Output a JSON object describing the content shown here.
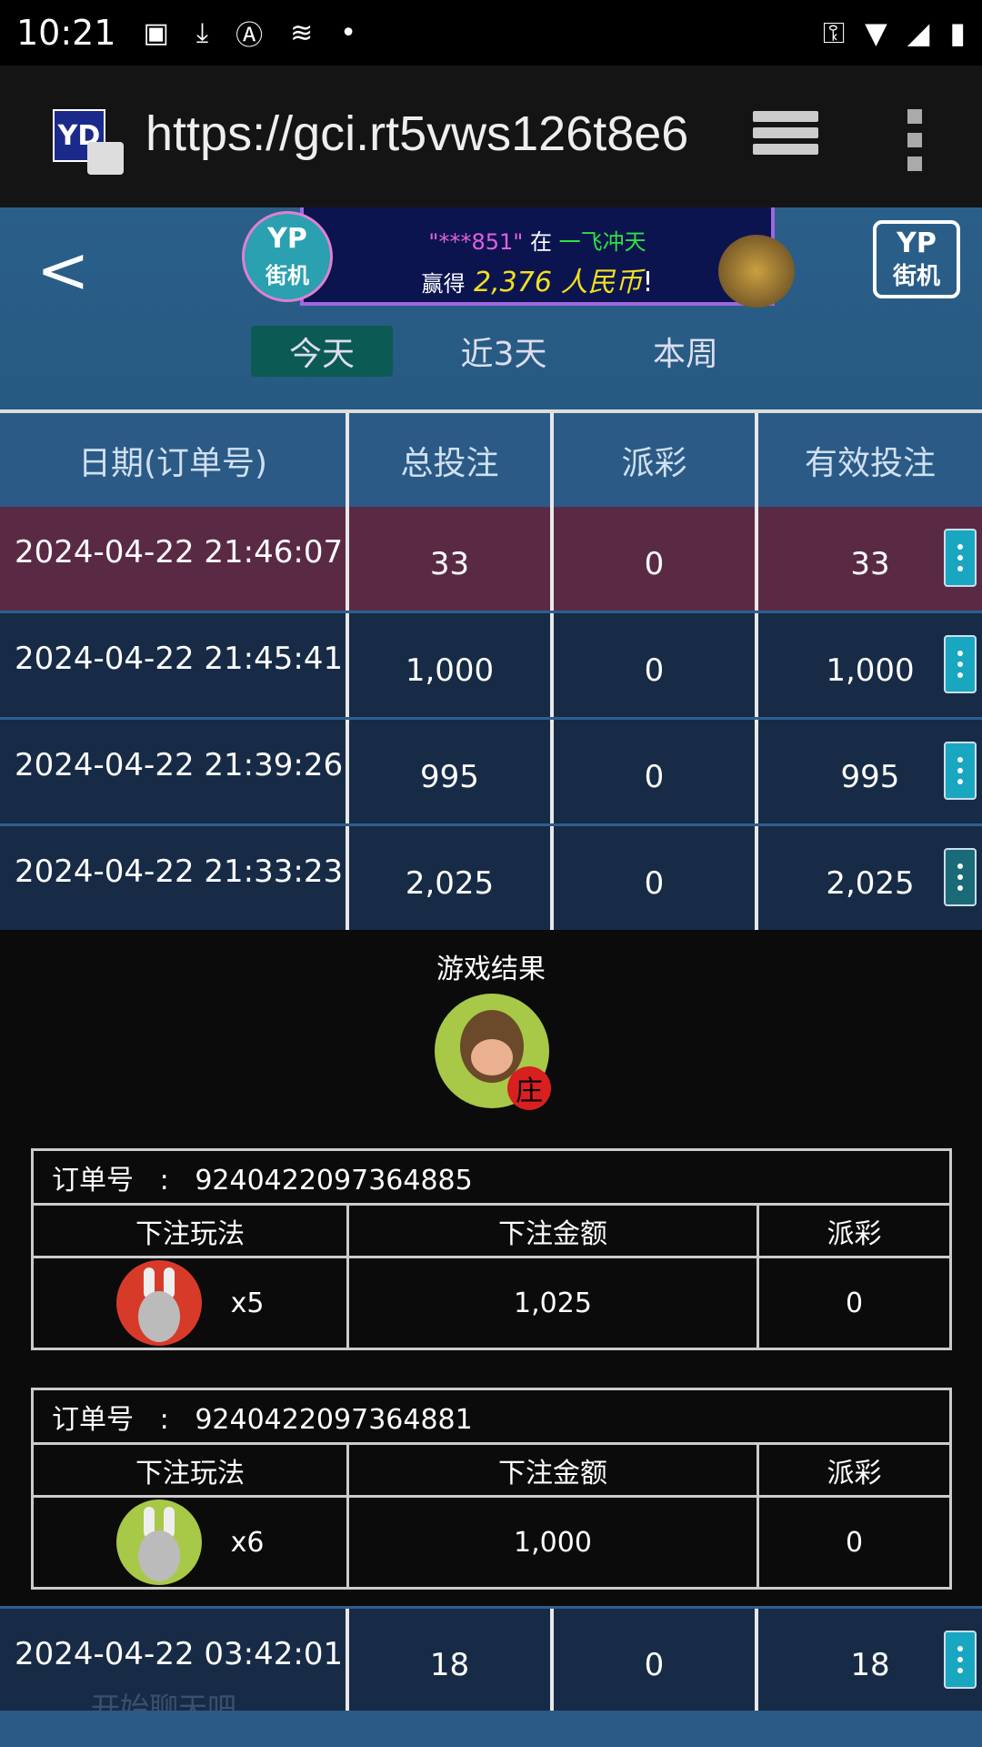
{
  "status_bar": {
    "time": "10:21",
    "icons": [
      "image-icon",
      "download-icon",
      "font-icon",
      "nfc-icon",
      "dot-icon"
    ],
    "right_icons": [
      "key-icon",
      "wifi-icon",
      "signal-icon",
      "battery-charging-icon"
    ]
  },
  "browser": {
    "url": "https://gci.rt5vws126t8e6",
    "favicon": "YD"
  },
  "header": {
    "banner": {
      "user": "\"***851\"",
      "in": "在",
      "game": "一飞冲天",
      "won": "赢得",
      "amount": "2,376 人民币",
      "exclaim": "!"
    },
    "badge": {
      "line1": "YP",
      "line2": "街机"
    },
    "logo": {
      "line1": "YP",
      "line2": "街机"
    },
    "tabs": [
      {
        "label": "今天",
        "active": true
      },
      {
        "label": "近3天",
        "active": false
      },
      {
        "label": "本周",
        "active": false
      }
    ]
  },
  "table": {
    "headers": [
      "日期(订单号)",
      "总投注",
      "派彩",
      "有效投注"
    ],
    "rows": [
      {
        "date": "2024-04-22 21:46:07",
        "total": "33",
        "payout": "0",
        "valid": "33",
        "selected": true
      },
      {
        "date": "2024-04-22 21:45:41",
        "total": "1,000",
        "payout": "0",
        "valid": "1,000"
      },
      {
        "date": "2024-04-22 21:39:26",
        "total": "995",
        "payout": "0",
        "valid": "995"
      },
      {
        "date": "2024-04-22 21:33:23",
        "total": "2,025",
        "payout": "0",
        "valid": "2,025"
      }
    ],
    "last_row": {
      "date": "2024-04-22 03:42:01",
      "total": "18",
      "payout": "0",
      "valid": "18"
    }
  },
  "detail": {
    "title": "游戏结果",
    "result_badge": "庄",
    "orders": [
      {
        "label": "订单号   :   9240422097364885",
        "headers": [
          "下注玩法",
          "下注金额",
          "派彩"
        ],
        "multiplier": "x5",
        "amount": "1,025",
        "payout": "0",
        "icon_color": "#d83a2a"
      },
      {
        "label": "订单号   :   9240422097364881",
        "headers": [
          "下注玩法",
          "下注金额",
          "派彩"
        ],
        "multiplier": "x6",
        "amount": "1,000",
        "payout": "0",
        "icon_color": "#a8c848"
      }
    ]
  },
  "chat": {
    "placeholder": "开始聊天吧"
  }
}
